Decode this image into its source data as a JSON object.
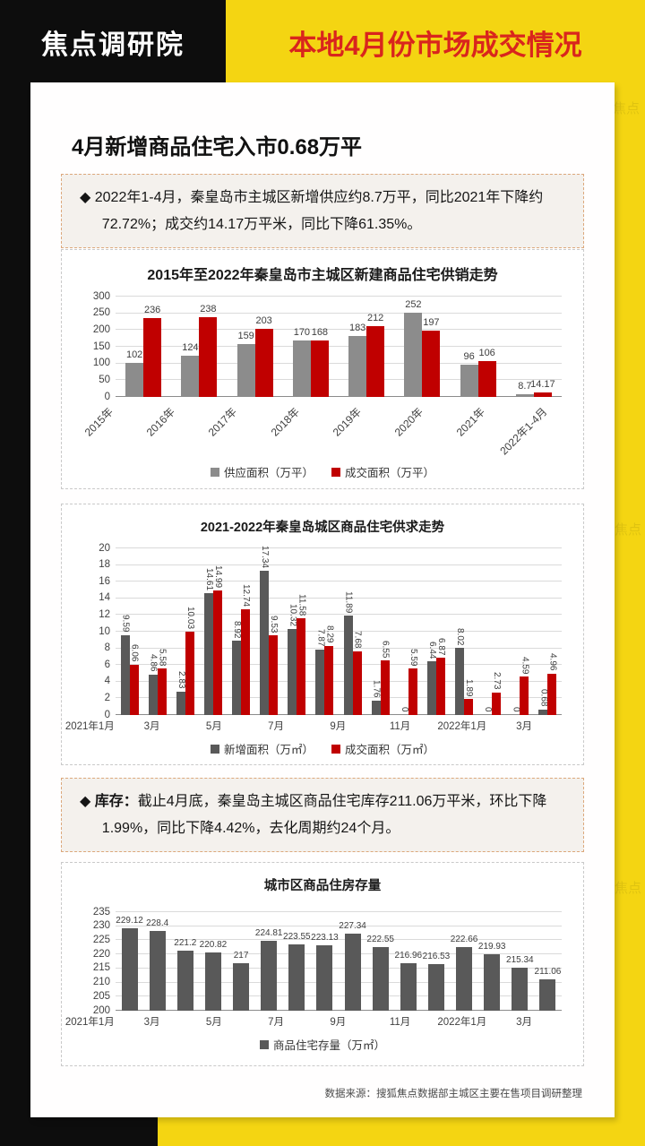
{
  "page": {
    "brand": "焦点调研院",
    "header_title": "本地4月份市场成交情况",
    "section_title": "4月新增商品住宅入市0.68万平",
    "highlight1": "◆ 2022年1-4月，秦皇岛市主城区新增供应约8.7万平，同比2021年下降约72.72%；成交约14.17万平米，同比下降61.35%。",
    "highlight2_label": "◆ 库存：",
    "highlight2_text": "截止4月底，秦皇岛主城区商品住宅库存211.06万平米，环比下降1.99%，同比下降4.42%，去化周期约24个月。",
    "source_note": "数据来源：搜狐焦点数据部主城区主要在售项目调研整理",
    "watermark": "搜狐焦点"
  },
  "colors": {
    "yellow_bg": "#F4D512",
    "black_block": "#0d0d0d",
    "title_red": "#D9251D",
    "bar_gray_light": "#8C8C8C",
    "bar_gray_dark": "#595959",
    "bar_red": "#C00000",
    "highlight_border": "#dca87c"
  },
  "chart_data": [
    {
      "type": "bar",
      "title": "2015年至2022年秦皇岛市主城区新建商品住宅供销走势",
      "categories": [
        "2015年",
        "2016年",
        "2017年",
        "2018年",
        "2019年",
        "2020年",
        "2021年",
        "2022年1-4月"
      ],
      "series": [
        {
          "name": "供应面积（万平）",
          "color": "#8C8C8C",
          "values": [
            102,
            124,
            159,
            170,
            183,
            252,
            96,
            8.7
          ]
        },
        {
          "name": "成交面积（万平）",
          "color": "#C00000",
          "values": [
            236,
            238,
            203,
            168,
            212,
            197,
            106,
            14.17
          ]
        }
      ],
      "ylim": [
        0,
        300
      ],
      "ystep": 50,
      "grid": true,
      "legend_position": "bottom",
      "xtick_rotation": -45,
      "xtick_every": 1,
      "xlabel": "",
      "ylabel": ""
    },
    {
      "type": "bar",
      "title": "2021-2022年秦皇岛城区商品住宅供求走势",
      "categories": [
        "2021年1月",
        "2月",
        "3月",
        "4月",
        "5月",
        "6月",
        "7月",
        "8月",
        "9月",
        "10月",
        "11月",
        "12月",
        "2022年1月",
        "2月",
        "3月",
        "4月"
      ],
      "series": [
        {
          "name": "新增面积（万㎡）",
          "color": "#595959",
          "values": [
            9.59,
            4.86,
            2.83,
            14.61,
            8.92,
            17.34,
            10.32,
            7.87,
            11.89,
            1.76,
            0,
            6.44,
            8.02,
            0,
            0,
            0.68
          ]
        },
        {
          "name": "成交面积（万㎡）",
          "color": "#C00000",
          "values": [
            6.06,
            5.58,
            10.03,
            14.99,
            12.74,
            9.53,
            11.58,
            8.29,
            7.68,
            6.55,
            5.59,
            6.87,
            1.89,
            2.73,
            4.59,
            4.96
          ]
        }
      ],
      "ylim": [
        0,
        20
      ],
      "ystep": 2,
      "grid": true,
      "legend_position": "bottom",
      "label_rotation": "vertical",
      "xtick_every": 2,
      "xlabel": "",
      "ylabel": ""
    },
    {
      "type": "bar",
      "title": "城市区商品住房存量",
      "categories": [
        "2021年1月",
        "2月",
        "3月",
        "4月",
        "5月",
        "6月",
        "7月",
        "8月",
        "9月",
        "10月",
        "11月",
        "12月",
        "2022年1月",
        "2月",
        "3月",
        "4月"
      ],
      "series": [
        {
          "name": "商品住宅存量（万㎡）",
          "color": "#595959",
          "values": [
            229.12,
            228.4,
            221.2,
            220.82,
            217,
            224.81,
            223.55,
            223.13,
            227.34,
            222.55,
            216.96,
            216.53,
            222.66,
            219.93,
            215.34,
            211.06
          ]
        }
      ],
      "ylim": [
        200,
        235
      ],
      "ystep": 5,
      "grid": true,
      "legend_position": "bottom",
      "xtick_every": 2,
      "xlabel": "",
      "ylabel": ""
    }
  ]
}
